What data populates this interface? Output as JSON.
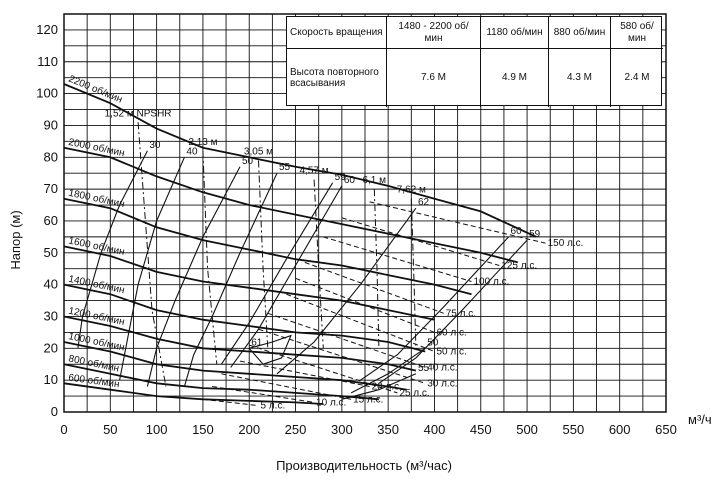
{
  "chart_data": {
    "type": "line",
    "xlabel": "Производительность (м³/час)",
    "ylabel": "Напор (м)",
    "x_unit_label": "м³/ч",
    "xlim": [
      0,
      650
    ],
    "ylim": [
      0,
      125
    ],
    "x_ticks": [
      0,
      50,
      100,
      150,
      200,
      250,
      300,
      350,
      400,
      450,
      500,
      550,
      600,
      650
    ],
    "y_ticks": [
      0,
      10,
      20,
      30,
      40,
      50,
      60,
      70,
      80,
      90,
      100,
      110,
      120
    ],
    "grid": true,
    "speed_curves": [
      {
        "label": "2200 об/мин",
        "points": [
          [
            0,
            103
          ],
          [
            50,
            97
          ],
          [
            100,
            89
          ],
          [
            150,
            83
          ],
          [
            200,
            80
          ],
          [
            250,
            77
          ],
          [
            300,
            74.5
          ],
          [
            350,
            71
          ],
          [
            400,
            67
          ],
          [
            450,
            63
          ],
          [
            510,
            55
          ]
        ]
      },
      {
        "label": "2000 об/мин",
        "points": [
          [
            0,
            83
          ],
          [
            50,
            80
          ],
          [
            100,
            74
          ],
          [
            150,
            69
          ],
          [
            200,
            65
          ],
          [
            250,
            62
          ],
          [
            300,
            59
          ],
          [
            350,
            56
          ],
          [
            400,
            53
          ],
          [
            450,
            50
          ],
          [
            490,
            47
          ]
        ]
      },
      {
        "label": "1800 об/мин",
        "points": [
          [
            0,
            67
          ],
          [
            50,
            64
          ],
          [
            100,
            58
          ],
          [
            150,
            54
          ],
          [
            200,
            51
          ],
          [
            250,
            48
          ],
          [
            300,
            46
          ],
          [
            350,
            43
          ],
          [
            400,
            40
          ],
          [
            440,
            37
          ]
        ]
      },
      {
        "label": "1600 об/мин",
        "points": [
          [
            0,
            52
          ],
          [
            50,
            49
          ],
          [
            100,
            44
          ],
          [
            150,
            41
          ],
          [
            200,
            39
          ],
          [
            250,
            37
          ],
          [
            300,
            35
          ],
          [
            350,
            32
          ],
          [
            400,
            29
          ]
        ]
      },
      {
        "label": "1400 об/мин",
        "points": [
          [
            0,
            40
          ],
          [
            50,
            37
          ],
          [
            100,
            32
          ],
          [
            150,
            29
          ],
          [
            200,
            27
          ],
          [
            250,
            25
          ],
          [
            300,
            24
          ],
          [
            350,
            22
          ],
          [
            390,
            19
          ]
        ]
      },
      {
        "label": "1200 об/мин",
        "points": [
          [
            0,
            30
          ],
          [
            50,
            27
          ],
          [
            100,
            23
          ],
          [
            150,
            20
          ],
          [
            200,
            19
          ],
          [
            250,
            18
          ],
          [
            300,
            17
          ],
          [
            350,
            15
          ],
          [
            380,
            13
          ]
        ]
      },
      {
        "label": "1000 об/мин",
        "points": [
          [
            0,
            22
          ],
          [
            50,
            19
          ],
          [
            100,
            15
          ],
          [
            150,
            13
          ],
          [
            200,
            12
          ],
          [
            250,
            11
          ],
          [
            300,
            10
          ],
          [
            350,
            8
          ],
          [
            370,
            7
          ]
        ]
      },
      {
        "label": "800 об/мин",
        "points": [
          [
            0,
            15
          ],
          [
            50,
            12
          ],
          [
            100,
            9
          ],
          [
            150,
            7.5
          ],
          [
            200,
            7
          ],
          [
            250,
            6
          ],
          [
            300,
            5
          ],
          [
            340,
            4
          ]
        ]
      },
      {
        "label": "600 об/мин",
        "points": [
          [
            0,
            9
          ],
          [
            50,
            7
          ],
          [
            100,
            5
          ],
          [
            150,
            4
          ],
          [
            200,
            3.5
          ],
          [
            250,
            3
          ],
          [
            280,
            2.5
          ]
        ]
      }
    ],
    "power_lines": [
      {
        "label": "5 л.с.",
        "points": [
          [
            150,
            4
          ],
          [
            210,
            2
          ]
        ]
      },
      {
        "label": "10 л.с.",
        "points": [
          [
            160,
            8
          ],
          [
            270,
            3
          ]
        ]
      },
      {
        "label": "15 л.с.",
        "points": [
          [
            170,
            12
          ],
          [
            310,
            4
          ]
        ]
      },
      {
        "label": "20 л.с.",
        "points": [
          [
            190,
            16
          ],
          [
            330,
            8
          ]
        ]
      },
      {
        "label": "25 л.с.",
        "points": [
          [
            200,
            21
          ],
          [
            360,
            6
          ]
        ]
      },
      {
        "label": "30 л.с.",
        "points": [
          [
            210,
            26
          ],
          [
            390,
            9
          ]
        ]
      },
      {
        "label": "40 л.с.",
        "points": [
          [
            220,
            31
          ],
          [
            390,
            14
          ]
        ]
      },
      {
        "label": "50 л.с.",
        "points": [
          [
            240,
            37
          ],
          [
            400,
            19
          ]
        ]
      },
      {
        "label": "60 л.с.",
        "points": [
          [
            250,
            42
          ],
          [
            400,
            25
          ]
        ]
      },
      {
        "label": "75 л.с.",
        "points": [
          [
            260,
            47
          ],
          [
            410,
            31
          ]
        ]
      },
      {
        "label": "100 л.с.",
        "points": [
          [
            280,
            55
          ],
          [
            440,
            41
          ]
        ]
      },
      {
        "label": "125 л.с.",
        "points": [
          [
            300,
            61
          ],
          [
            470,
            46
          ]
        ]
      },
      {
        "label": "150 л.с.",
        "points": [
          [
            330,
            66
          ],
          [
            520,
            53
          ]
        ]
      }
    ],
    "npshr_lines": [
      {
        "label": "1,52 м NPSHR",
        "points": [
          [
            80,
            91
          ],
          [
            95,
            32
          ],
          [
            110,
            8
          ]
        ]
      },
      {
        "label": "2,13 м",
        "points": [
          [
            150,
            82
          ],
          [
            155,
            45
          ],
          [
            165,
            15
          ]
        ]
      },
      {
        "label": "3,05 м",
        "points": [
          [
            210,
            79
          ],
          [
            215,
            45
          ],
          [
            220,
            20
          ]
        ]
      },
      {
        "label": "4,57 м",
        "points": [
          [
            270,
            73
          ],
          [
            275,
            45
          ],
          [
            280,
            20
          ]
        ]
      },
      {
        "label": "6,1 м",
        "points": [
          [
            335,
            70
          ],
          [
            338,
            45
          ],
          [
            340,
            20
          ]
        ]
      },
      {
        "label": "7,62 м",
        "points": [
          [
            375,
            67
          ],
          [
            378,
            40
          ],
          [
            380,
            20
          ]
        ]
      }
    ],
    "efficiency_curves": [
      {
        "label": "30",
        "points": [
          [
            90,
            82
          ],
          [
            60,
            65
          ],
          [
            40,
            50
          ],
          [
            30,
            40
          ],
          [
            20,
            30
          ],
          [
            15,
            20
          ]
        ]
      },
      {
        "label": "40",
        "points": [
          [
            130,
            80
          ],
          [
            100,
            60
          ],
          [
            80,
            40
          ],
          [
            70,
            25
          ],
          [
            60,
            10
          ]
        ]
      },
      {
        "label": "50",
        "points": [
          [
            190,
            77
          ],
          [
            150,
            55
          ],
          [
            120,
            35
          ],
          [
            100,
            20
          ],
          [
            90,
            8
          ]
        ]
      },
      {
        "label": "55",
        "points": [
          [
            230,
            75
          ],
          [
            190,
            50
          ],
          [
            160,
            30
          ],
          [
            140,
            18
          ],
          [
            130,
            8
          ]
        ]
      },
      {
        "label": "59",
        "points": [
          [
            290,
            72
          ],
          [
            240,
            48
          ],
          [
            200,
            28
          ],
          [
            170,
            15
          ]
        ]
      },
      {
        "label": "60",
        "points": [
          [
            300,
            71
          ],
          [
            250,
            46
          ],
          [
            210,
            26
          ],
          [
            180,
            14
          ]
        ]
      },
      {
        "label": "61",
        "points": [
          [
            200,
            20
          ],
          [
            225,
            22
          ],
          [
            245,
            24
          ],
          [
            235,
            17
          ],
          [
            215,
            15
          ],
          [
            200,
            20
          ]
        ]
      },
      {
        "label": "62",
        "points": [
          [
            380,
            64
          ],
          [
            320,
            40
          ],
          [
            270,
            22
          ],
          [
            230,
            12
          ]
        ]
      },
      {
        "label": "60",
        "points": [
          [
            480,
            55
          ],
          [
            410,
            33
          ],
          [
            360,
            18
          ],
          [
            320,
            10
          ]
        ]
      },
      {
        "label": "59",
        "points": [
          [
            500,
            54
          ],
          [
            430,
            32
          ],
          [
            380,
            17
          ],
          [
            340,
            9
          ]
        ]
      },
      {
        "label": "55",
        "points": [
          [
            380,
            12
          ],
          [
            340,
            7
          ],
          [
            300,
            4
          ]
        ]
      },
      {
        "label": "50",
        "points": [
          [
            390,
            20
          ],
          [
            350,
            12
          ],
          [
            310,
            6
          ]
        ]
      }
    ],
    "annotations": [
      {
        "text": "1,52 м NPSHR"
      },
      {
        "text": "2,13 м"
      },
      {
        "text": "3,05 м"
      },
      {
        "text": "4,57 м"
      },
      {
        "text": "6,1 м"
      },
      {
        "text": "7,62 м"
      }
    ]
  },
  "table": {
    "header_label": "Скорость вращения",
    "row_label": "Высота повторного всасывания",
    "columns": [
      {
        "speed": "1480 - 2200 об/мин",
        "lift": "7.6 М"
      },
      {
        "speed": "1180 об/мин",
        "lift": "4.9 М"
      },
      {
        "speed": "880 об/мин",
        "lift": "4.3 М"
      },
      {
        "speed": "580 об/мин",
        "lift": "2.4 М"
      }
    ]
  }
}
